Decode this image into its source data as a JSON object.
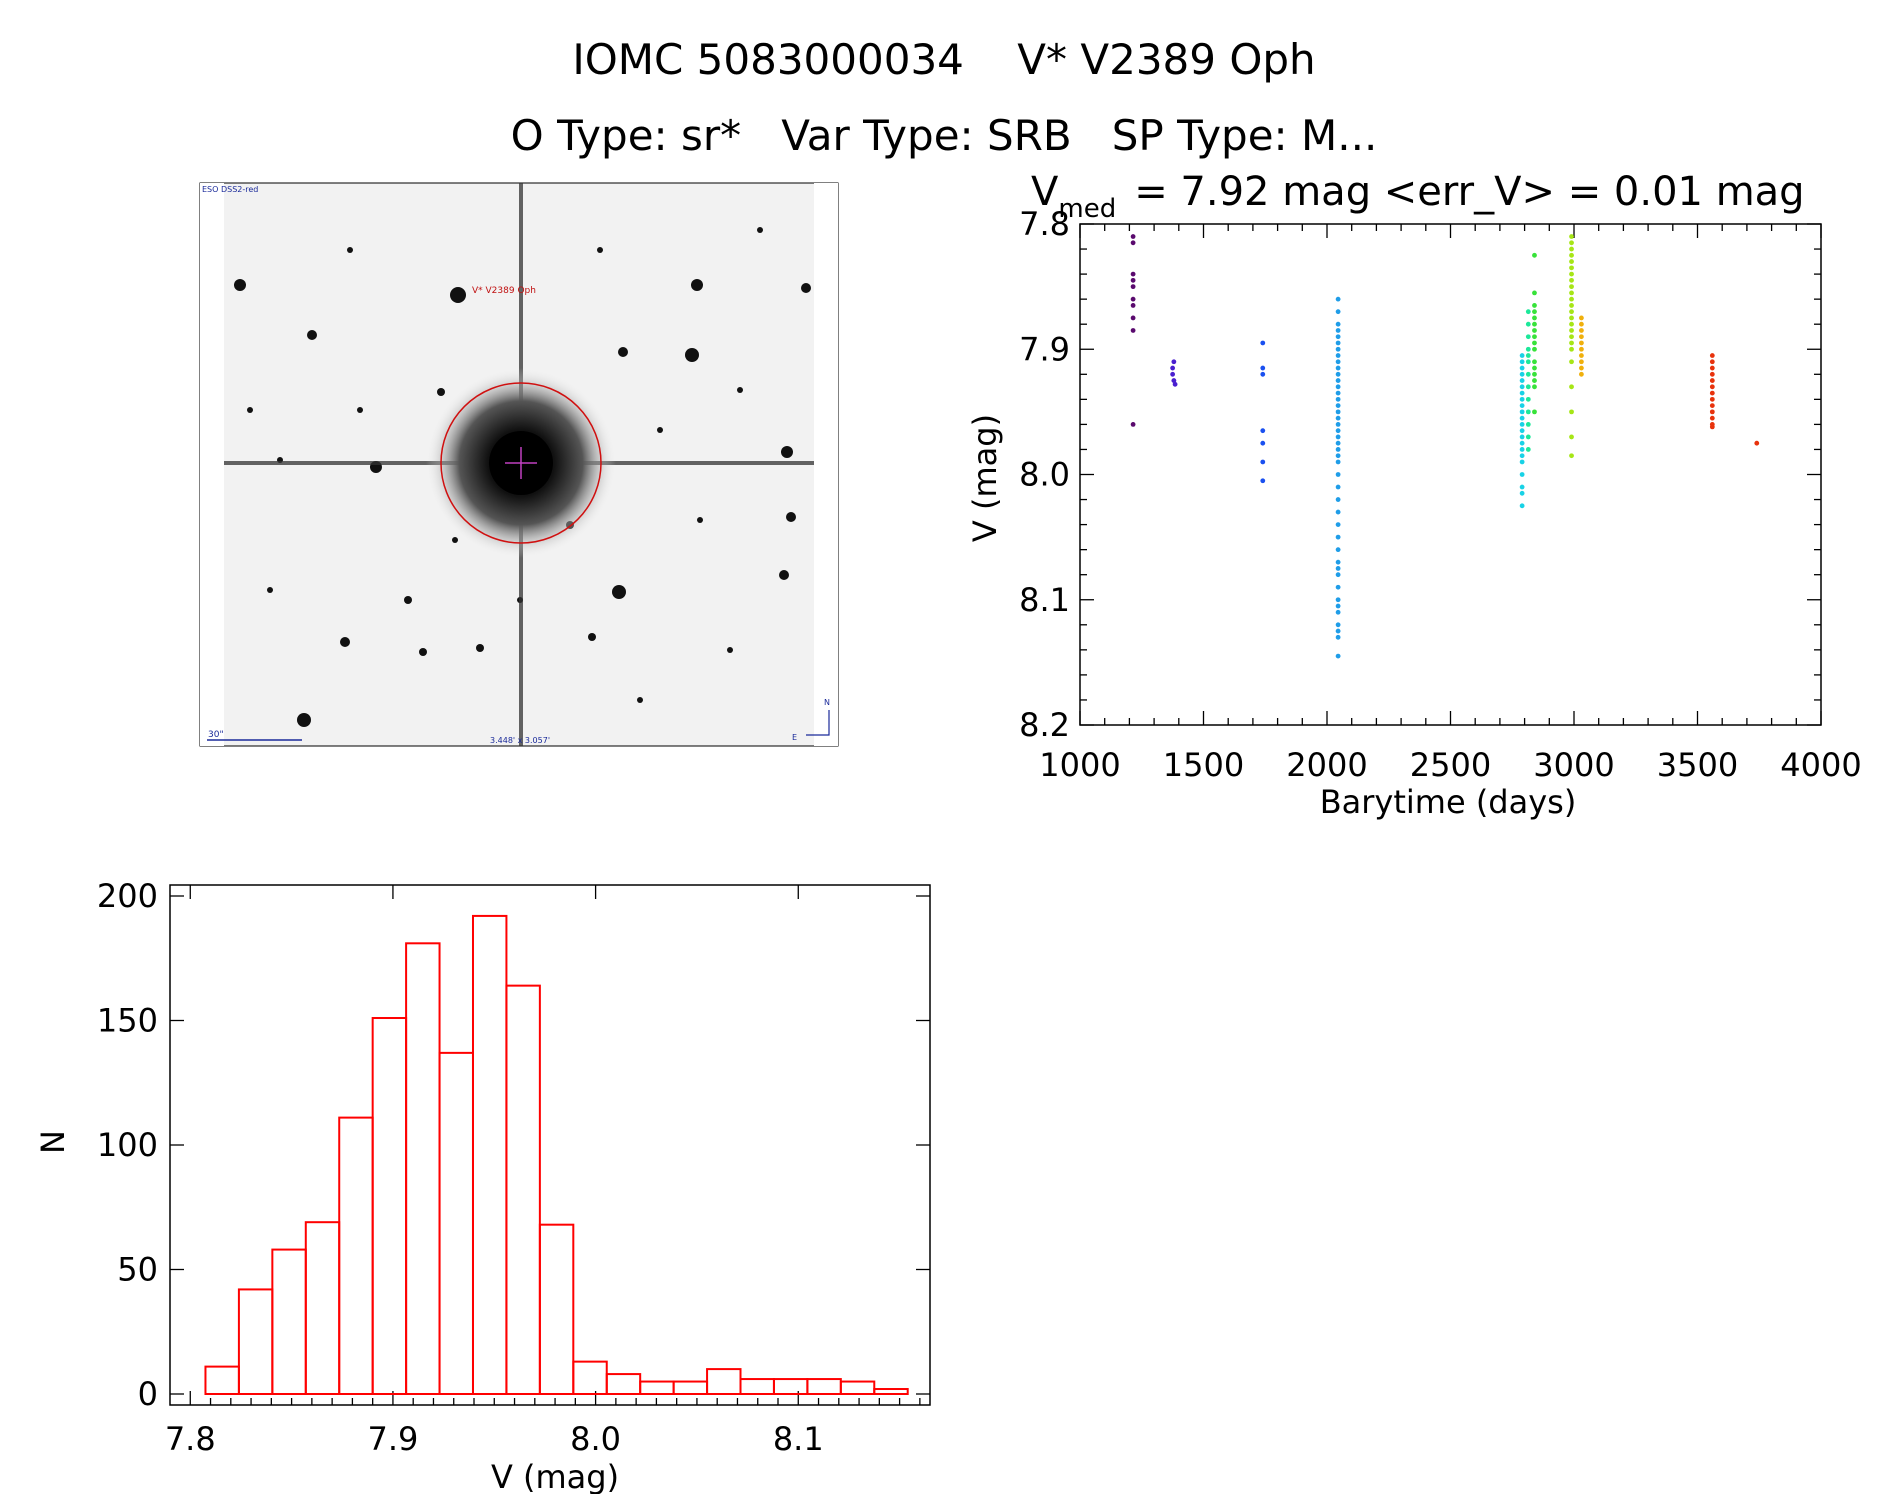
{
  "header": {
    "title": "IOMC 5083000034    V* V2389 Oph",
    "subtitle": "O Type: sr*   Var Type: SRB   SP Type: M..."
  },
  "image_panel": {
    "survey_label": "ESO DSS2-red",
    "target_label": "V* V2389 Oph",
    "scale_label": "30\"",
    "fov_label": "3.448' x 3.057'",
    "north_label": "N",
    "east_label": "E"
  },
  "chart_data": [
    {
      "type": "scatter",
      "title_main": "V",
      "title_sub": "med",
      "title_rest": "= 7.92 mag <err_V> = 0.01 mag",
      "xlabel": "Barytime (days)",
      "ylabel": "V (mag)",
      "xlim": [
        1000,
        4000
      ],
      "ylim": [
        7.8,
        8.2
      ],
      "y_inverted": true,
      "xticks": [
        "1000",
        "1500",
        "2000",
        "2500",
        "3000",
        "3500",
        "4000"
      ],
      "yticks": [
        "7.8",
        "7.9",
        "8.0",
        "8.1",
        "8.2"
      ],
      "series": [
        {
          "color": "#5a0a6e",
          "x": [
            1215,
            1215,
            1215,
            1215,
            1215,
            1215,
            1215,
            1215,
            1215,
            1215
          ],
          "y": [
            7.81,
            7.815,
            7.84,
            7.845,
            7.85,
            7.86,
            7.865,
            7.875,
            7.885,
            7.96
          ]
        },
        {
          "color": "#4a1fd0",
          "x": [
            1375,
            1375,
            1380,
            1380,
            1385
          ],
          "y": [
            7.915,
            7.92,
            7.91,
            7.925,
            7.928
          ]
        },
        {
          "color": "#1a50f0",
          "x": [
            1740,
            1740,
            1740,
            1740,
            1740,
            1740,
            1740
          ],
          "y": [
            7.895,
            7.915,
            7.92,
            7.965,
            7.975,
            7.99,
            8.005
          ]
        },
        {
          "color": "#1f9de8",
          "x": [
            2045,
            2045,
            2045,
            2045,
            2045,
            2045,
            2045,
            2045,
            2045,
            2045,
            2045,
            2045,
            2045,
            2045,
            2045,
            2045,
            2045,
            2045,
            2045,
            2045,
            2045,
            2045,
            2045,
            2045,
            2045,
            2045,
            2045,
            2045,
            2045,
            2045,
            2045,
            2045,
            2045,
            2045,
            2045,
            2045,
            2045,
            2045,
            2045,
            2045,
            2045,
            2045,
            2045
          ],
          "y": [
            7.86,
            7.87,
            7.88,
            7.885,
            7.89,
            7.895,
            7.9,
            7.905,
            7.91,
            7.915,
            7.92,
            7.925,
            7.93,
            7.935,
            7.94,
            7.945,
            7.95,
            7.955,
            7.96,
            7.965,
            7.97,
            7.975,
            7.98,
            7.985,
            7.99,
            8.0,
            8.01,
            8.02,
            8.03,
            8.04,
            8.05,
            8.06,
            8.07,
            8.075,
            8.08,
            8.09,
            8.1,
            8.105,
            8.11,
            8.12,
            8.125,
            8.13,
            8.145
          ]
        },
        {
          "color": "#18d2e6",
          "x": [
            2790,
            2790,
            2790,
            2790,
            2790,
            2790,
            2790,
            2790,
            2790,
            2790,
            2790,
            2790,
            2790,
            2790,
            2790,
            2790,
            2790,
            2790,
            2790,
            2790,
            2790,
            2790
          ],
          "y": [
            7.905,
            7.91,
            7.915,
            7.92,
            7.925,
            7.93,
            7.935,
            7.94,
            7.945,
            7.95,
            7.955,
            7.96,
            7.965,
            7.97,
            7.975,
            7.98,
            7.985,
            7.99,
            8.0,
            8.01,
            8.015,
            8.025
          ]
        },
        {
          "color": "#1ce89a",
          "x": [
            2815,
            2815,
            2815,
            2815,
            2815,
            2815,
            2815,
            2815,
            2815,
            2815,
            2815,
            2815,
            2815
          ],
          "y": [
            7.87,
            7.88,
            7.89,
            7.9,
            7.905,
            7.91,
            7.92,
            7.93,
            7.94,
            7.95,
            7.96,
            7.97,
            7.98
          ]
        },
        {
          "color": "#38e23a",
          "x": [
            2840,
            2840,
            2840,
            2840,
            2840,
            2840,
            2840,
            2840,
            2840,
            2840,
            2840,
            2840,
            2840,
            2840,
            2840,
            2840
          ],
          "y": [
            7.825,
            7.855,
            7.865,
            7.87,
            7.875,
            7.88,
            7.885,
            7.89,
            7.895,
            7.9,
            7.91,
            7.915,
            7.92,
            7.925,
            7.93,
            7.95
          ]
        },
        {
          "color": "#a6e616",
          "x": [
            2990,
            2990,
            2990,
            2990,
            2990,
            2990,
            2990,
            2990,
            2990,
            2990,
            2990,
            2990,
            2990,
            2990,
            2990,
            2990,
            2990,
            2990,
            2990,
            2990,
            2990,
            2990,
            2990,
            2990
          ],
          "y": [
            7.81,
            7.815,
            7.82,
            7.825,
            7.83,
            7.835,
            7.84,
            7.845,
            7.85,
            7.855,
            7.86,
            7.865,
            7.87,
            7.875,
            7.88,
            7.885,
            7.89,
            7.895,
            7.9,
            7.91,
            7.93,
            7.95,
            7.97,
            7.985
          ]
        },
        {
          "color": "#f0b00c",
          "x": [
            3030,
            3030,
            3030,
            3030,
            3030,
            3030,
            3030,
            3030,
            3030,
            3030
          ],
          "y": [
            7.875,
            7.88,
            7.885,
            7.89,
            7.895,
            7.9,
            7.905,
            7.91,
            7.915,
            7.92
          ]
        },
        {
          "color": "#e8320c",
          "x": [
            3560,
            3560,
            3560,
            3560,
            3560,
            3560,
            3560,
            3560,
            3560,
            3560,
            3560,
            3560,
            3560,
            3740
          ],
          "y": [
            7.905,
            7.91,
            7.915,
            7.92,
            7.925,
            7.93,
            7.935,
            7.94,
            7.945,
            7.95,
            7.955,
            7.96,
            7.962,
            7.975
          ]
        }
      ]
    },
    {
      "type": "bar",
      "xlabel": "V (mag)",
      "ylabel": "N",
      "xlim": [
        7.79,
        8.165
      ],
      "ylim": [
        0,
        200
      ],
      "xticks": [
        "7.8",
        "7.9",
        "8.0",
        "8.1"
      ],
      "yticks": [
        "0",
        "50",
        "100",
        "150",
        "200"
      ],
      "bin_edges": [
        7.8075,
        7.824,
        7.8405,
        7.857,
        7.8735,
        7.89,
        7.9065,
        7.923,
        7.9395,
        7.956,
        7.9725,
        7.989,
        8.0055,
        8.022,
        8.0385,
        8.055,
        8.0715,
        8.088,
        8.1045,
        8.121,
        8.1375,
        8.154
      ],
      "values": [
        11,
        42,
        58,
        69,
        111,
        151,
        181,
        137,
        192,
        164,
        68,
        13,
        8,
        5,
        5,
        10,
        6,
        6,
        6,
        5,
        2
      ],
      "bar_color": "#ff0000"
    }
  ]
}
